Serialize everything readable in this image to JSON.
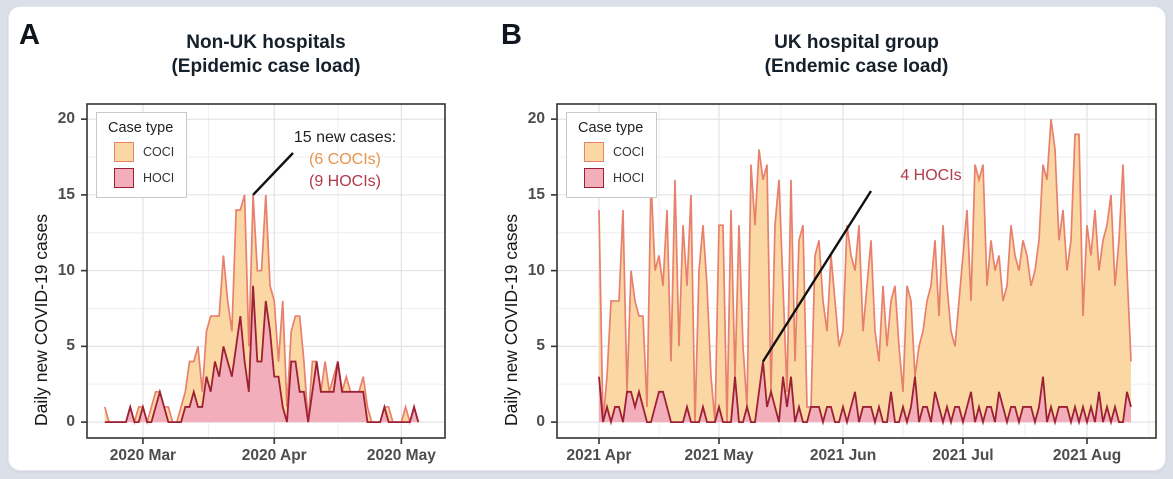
{
  "figure": {
    "panels": [
      {
        "label": "A",
        "title_line1": "Non-UK hospitals",
        "title_line2": "(Epidemic case load)",
        "ylabel": "Daily new COVID-19 cases"
      },
      {
        "label": "B",
        "title_line1": "UK hospital group",
        "title_line2": "(Endemic case load)",
        "ylabel": "Daily new COVID-19 cases"
      }
    ],
    "legend": {
      "title": "Case type",
      "items": [
        {
          "label": "COCI"
        },
        {
          "label": "HOCI"
        }
      ]
    }
  },
  "colors": {
    "coci_fill": "#fbd7a3",
    "coci_line": "#e8806e",
    "hoci_fill": "#f2aeba",
    "hoci_line": "#9c2135",
    "annotation_coci_text": "#e8944a",
    "annotation_hoci_text": "#b03a4a",
    "grid_major": "#e0e0e5",
    "grid_minor": "#eeeef2",
    "panel_border": "#333333",
    "axis_text": "#4d4d4d",
    "page_background": "#dbe0e8",
    "card_background": "#ffffff"
  },
  "chart_data": [
    {
      "type": "area",
      "stacked": true,
      "title": "Non-UK hospitals (Epidemic case load)",
      "xlabel": "",
      "ylabel": "Daily new COVID-19 cases",
      "ylim": [
        0,
        20
      ],
      "yticks": [
        0,
        5,
        10,
        15,
        20
      ],
      "grid": true,
      "legend_position": "top-left-inside",
      "x_start_date": "2020-02-21",
      "x_unit": "day",
      "xticks": [
        {
          "day": 9,
          "label": "2020 Mar"
        },
        {
          "day": 40,
          "label": "2020 Apr"
        },
        {
          "day": 70,
          "label": "2020 May"
        }
      ],
      "series": [
        {
          "name": "COCI",
          "values": [
            1,
            0,
            0,
            0,
            0,
            0,
            0,
            0,
            1,
            0,
            0,
            1,
            1,
            0,
            0,
            1,
            0,
            0,
            1,
            1,
            3,
            2,
            4,
            1,
            3,
            5,
            3,
            4,
            6,
            4,
            3,
            9,
            7,
            11,
            3,
            6,
            6,
            6,
            7,
            3,
            5,
            1,
            7,
            1,
            2,
            3,
            5,
            2,
            0,
            2,
            0,
            0,
            2,
            0,
            1,
            0,
            0,
            1,
            0,
            0,
            0,
            1,
            1,
            0,
            0,
            0,
            0,
            1,
            0,
            0,
            0,
            1,
            0,
            0,
            0
          ]
        },
        {
          "name": "HOCI",
          "values": [
            0,
            0,
            0,
            0,
            0,
            0,
            1,
            0,
            0,
            1,
            0,
            0,
            1,
            2,
            1,
            0,
            0,
            0,
            0,
            1,
            1,
            2,
            1,
            1,
            3,
            2,
            4,
            3,
            5,
            4,
            3,
            5,
            7,
            4,
            2,
            9,
            4,
            4,
            8,
            6,
            3,
            3,
            1,
            0,
            4,
            4,
            2,
            2,
            0,
            2,
            4,
            2,
            2,
            2,
            2,
            4,
            2,
            2,
            2,
            2,
            2,
            2,
            0,
            0,
            0,
            0,
            1,
            0,
            0,
            0,
            0,
            0,
            0,
            1,
            0
          ]
        }
      ],
      "annotation": {
        "lines": [
          {
            "text": "15 new cases:",
            "color": "black"
          },
          {
            "text": "(6 COCIs)",
            "color": "coci"
          },
          {
            "text": "(9 HOCIs)",
            "color": "hoci"
          }
        ],
        "anchor_day": 35,
        "anchor_value": 15
      }
    },
    {
      "type": "area",
      "stacked": true,
      "title": "UK hospital group (Endemic case load)",
      "xlabel": "",
      "ylabel": "Daily new COVID-19 cases",
      "ylim": [
        0,
        20
      ],
      "yticks": [
        0,
        5,
        10,
        15,
        20
      ],
      "grid": true,
      "legend_position": "top-left-inside",
      "x_start_date": "2021-04-01",
      "x_unit": "day",
      "xticks": [
        {
          "day": 0,
          "label": "2021 Apr"
        },
        {
          "day": 30,
          "label": "2021 May"
        },
        {
          "day": 61,
          "label": "2021 Jun"
        },
        {
          "day": 91,
          "label": "2021 Jul"
        },
        {
          "day": 122,
          "label": "2021 Aug"
        }
      ],
      "series": [
        {
          "name": "COCI",
          "values": [
            11,
            0,
            2,
            8,
            7,
            7,
            14,
            0,
            8,
            7,
            5,
            6,
            1,
            16,
            9,
            9,
            7,
            13,
            4,
            16,
            5,
            13,
            8,
            15,
            0,
            10,
            12,
            9,
            3,
            0,
            12,
            13,
            0,
            14,
            0,
            13,
            5,
            0,
            17,
            13,
            16,
            12,
            16,
            0,
            12,
            16,
            6,
            1,
            13,
            4,
            11,
            13,
            1,
            0,
            10,
            11,
            8,
            5,
            10,
            8,
            5,
            5,
            13,
            10,
            8,
            13,
            5,
            8,
            11,
            6,
            3,
            9,
            5,
            6,
            9,
            5,
            1,
            9,
            7,
            0,
            5,
            5,
            7,
            9,
            10,
            6,
            13,
            8,
            6,
            4,
            7,
            11,
            13,
            6,
            17,
            15,
            17,
            8,
            11,
            10,
            9,
            7,
            9,
            12,
            10,
            10,
            11,
            10,
            8,
            10,
            11,
            14,
            16,
            19,
            18,
            11,
            13,
            9,
            12,
            18,
            19,
            6,
            13,
            10,
            14,
            8,
            12,
            12,
            15,
            8,
            12,
            17,
            8,
            3
          ]
        },
        {
          "name": "HOCI",
          "values": [
            3,
            0,
            1,
            0,
            1,
            1,
            0,
            2,
            2,
            1,
            2,
            1,
            0,
            0,
            1,
            2,
            2,
            1,
            0,
            0,
            0,
            0,
            1,
            0,
            0,
            0,
            1,
            0,
            0,
            0,
            1,
            0,
            0,
            0,
            3,
            0,
            0,
            1,
            0,
            0,
            2,
            4,
            1,
            2,
            1,
            0,
            3,
            1,
            3,
            0,
            1,
            0,
            0,
            1,
            1,
            1,
            0,
            1,
            1,
            0,
            0,
            1,
            0,
            1,
            2,
            0,
            1,
            1,
            1,
            0,
            1,
            0,
            0,
            2,
            0,
            0,
            1,
            0,
            1,
            3,
            0,
            1,
            1,
            0,
            2,
            1,
            0,
            1,
            0,
            1,
            1,
            0,
            1,
            2,
            0,
            1,
            0,
            1,
            1,
            0,
            2,
            1,
            0,
            1,
            1,
            0,
            1,
            1,
            1,
            0,
            1,
            3,
            0,
            1,
            0,
            1,
            1,
            1,
            0,
            1,
            0,
            1,
            0,
            1,
            0,
            2,
            0,
            1,
            0,
            1,
            0,
            0,
            2,
            1
          ]
        }
      ],
      "annotation": {
        "lines": [
          {
            "text": "4 HOCIs",
            "color": "hoci"
          }
        ],
        "anchor_day": 41,
        "anchor_value": 4
      }
    }
  ]
}
